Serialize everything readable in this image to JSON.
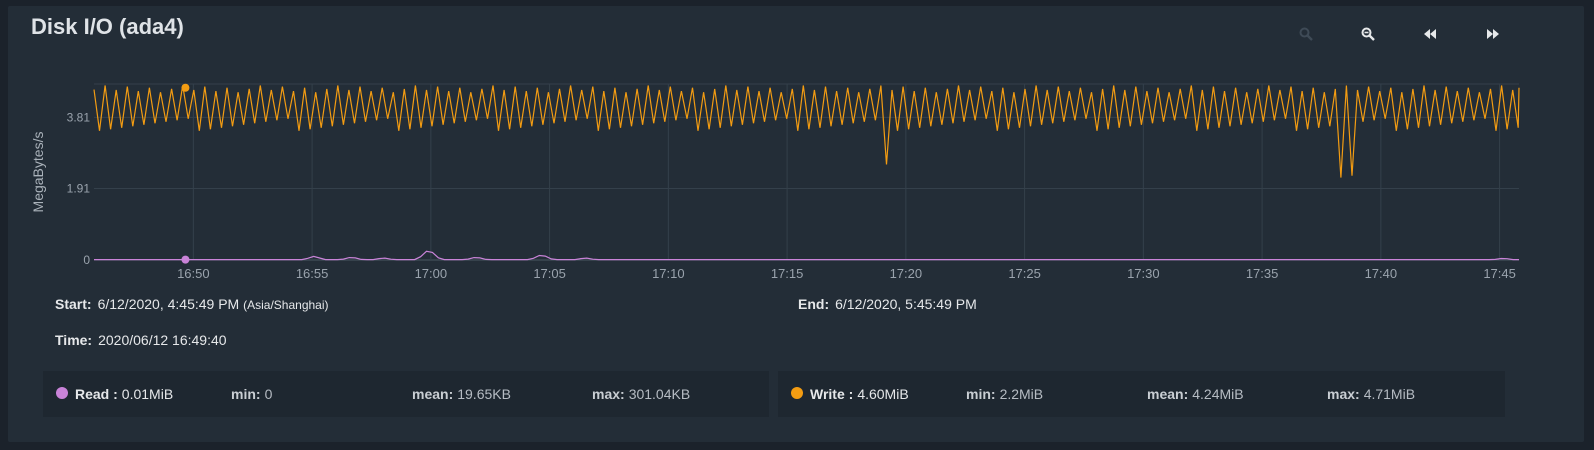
{
  "header": {
    "title": "Disk I/O (ada4)"
  },
  "toolbar": {
    "buttons": [
      {
        "name": "zoom-in-button",
        "icon": "zoom-in-icon"
      },
      {
        "name": "zoom-out-button",
        "icon": "zoom-out-icon"
      },
      {
        "name": "step-back-button",
        "icon": "rewind-icon"
      },
      {
        "name": "step-forward-button",
        "icon": "fast-forward-icon"
      }
    ]
  },
  "info": {
    "start_label": "Start:",
    "start_value": "6/12/2020, 4:45:49 PM",
    "timezone": "(Asia/Shanghai)",
    "end_label": "End:",
    "end_value": "6/12/2020, 5:45:49 PM",
    "time_label": "Time:",
    "time_value": "2020/06/12 16:49:40"
  },
  "legend": {
    "read": {
      "label": "Read :",
      "value": "0.01MiB",
      "min_label": "min:",
      "min": "0",
      "mean_label": "mean:",
      "mean": "19.65KB",
      "max_label": "max:",
      "max": "301.04KB"
    },
    "write": {
      "label": "Write :",
      "value": "4.60MiB",
      "min_label": "min:",
      "min": "2.2MiB",
      "mean_label": "mean:",
      "mean": "4.24MiB",
      "max_label": "max:",
      "max": "4.71MiB"
    }
  },
  "colors": {
    "background": "#1b222b",
    "card": "#232d37",
    "write": "#f39c12",
    "read": "#c983d8",
    "grid": "#34404b"
  },
  "chart_data": {
    "type": "line",
    "ylabel": "MegaBytes/s",
    "y_ticks": [
      0,
      1.91,
      3.81
    ],
    "y_tick_labels": [
      "0",
      "1.91",
      "3.81"
    ],
    "ylim": [
      0,
      4.7
    ],
    "x_range": [
      "16:45:49",
      "17:45:49"
    ],
    "x_ticks": [
      "16:50",
      "16:55",
      "17:00",
      "17:05",
      "17:10",
      "17:15",
      "17:20",
      "17:25",
      "17:30",
      "17:35",
      "17:40",
      "17:45"
    ],
    "grid": true,
    "marker_time": "16:49:40",
    "series": [
      {
        "name": "Read",
        "color": "#c983d8",
        "peak_value": 0.29,
        "baseline_value": 0.01,
        "spikes": [
          {
            "t": "16:55:05",
            "v": 0.1
          },
          {
            "t": "16:56:40",
            "v": 0.08
          },
          {
            "t": "16:58:00",
            "v": 0.06
          },
          {
            "t": "16:59:55",
            "v": 0.29
          },
          {
            "t": "17:01:55",
            "v": 0.08
          },
          {
            "t": "17:04:40",
            "v": 0.15
          },
          {
            "t": "17:06:30",
            "v": 0.06
          },
          {
            "t": "17:45:10",
            "v": 0.05
          }
        ]
      },
      {
        "name": "Write",
        "color": "#f39c12",
        "period_seconds": 28,
        "peak_value": 4.66,
        "trough_value": 3.45,
        "start_value": 4.55,
        "end_value": 4.6,
        "marker_value": 4.6,
        "dips": [
          {
            "t": "17:18:50",
            "v": 2.6
          },
          {
            "t": "17:19:10",
            "v": 2.55
          },
          {
            "t": "17:38:20",
            "v": 2.2
          },
          {
            "t": "17:38:50",
            "v": 2.25
          }
        ]
      }
    ]
  }
}
